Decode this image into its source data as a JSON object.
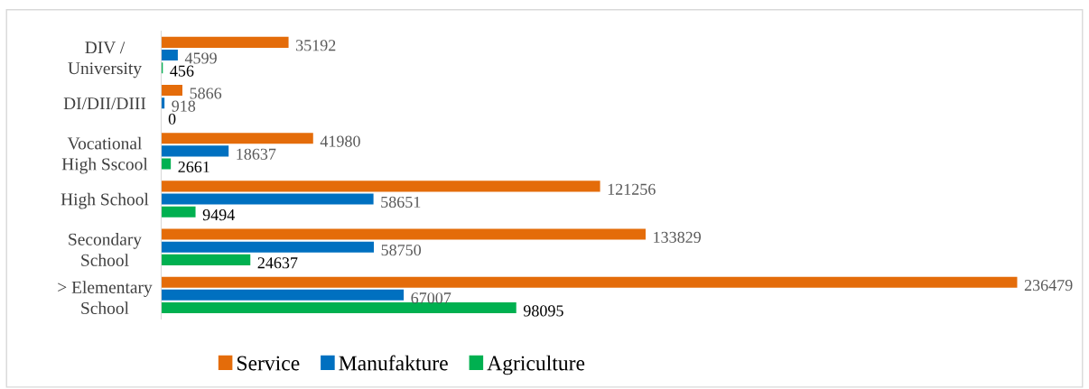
{
  "chart_data": {
    "type": "bar",
    "orientation": "horizontal",
    "categories": [
      "DIV /\nUniversity",
      "DI/DII/DIII",
      "Vocational\nHigh Sscool",
      "High School",
      "Secondary\nSchool",
      "> Elementary\nSchool"
    ],
    "series": [
      {
        "name": "Service",
        "color": "#e46c0a",
        "values": [
          35192,
          5866,
          41980,
          121256,
          133829,
          236479
        ]
      },
      {
        "name": "Manufakture",
        "color": "#0070c0",
        "values": [
          4599,
          918,
          18637,
          58651,
          58750,
          67007
        ]
      },
      {
        "name": "Agriculture",
        "color": "#00b050",
        "values": [
          456,
          0,
          2661,
          9494,
          24637,
          98095
        ]
      }
    ],
    "data_labels": true,
    "legend": "bottom",
    "tick_labels": "y",
    "grid": false
  }
}
